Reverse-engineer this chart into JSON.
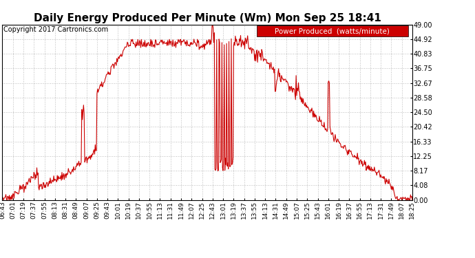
{
  "title": "Daily Energy Produced Per Minute (Wm) Mon Sep 25 18:41",
  "copyright": "Copyright 2017 Cartronics.com",
  "legend_label": "Power Produced  (watts/minute)",
  "legend_bg": "#cc0000",
  "legend_text_color": "#ffffff",
  "line_color": "#cc0000",
  "bg_color": "#ffffff",
  "plot_bg_color": "#ffffff",
  "grid_color": "#bbbbbb",
  "ylim": [
    0,
    49.0
  ],
  "yticks": [
    0.0,
    4.08,
    8.17,
    12.25,
    16.33,
    20.42,
    24.5,
    28.58,
    32.67,
    36.75,
    40.83,
    44.92,
    49.0
  ],
  "xtick_labels": [
    "06:43",
    "07:01",
    "07:19",
    "07:37",
    "07:55",
    "08:13",
    "08:31",
    "08:49",
    "09:07",
    "09:25",
    "09:43",
    "10:01",
    "10:19",
    "10:37",
    "10:55",
    "11:13",
    "11:31",
    "11:49",
    "12:07",
    "12:25",
    "12:43",
    "13:01",
    "13:19",
    "13:37",
    "13:55",
    "14:13",
    "14:31",
    "14:49",
    "15:07",
    "15:25",
    "15:43",
    "16:01",
    "16:19",
    "16:37",
    "16:55",
    "17:13",
    "17:31",
    "17:49",
    "18:07",
    "18:25"
  ],
  "title_fontsize": 11,
  "copyright_fontsize": 7,
  "legend_fontsize": 7.5,
  "ytick_fontsize": 7,
  "xtick_fontsize": 6.5
}
